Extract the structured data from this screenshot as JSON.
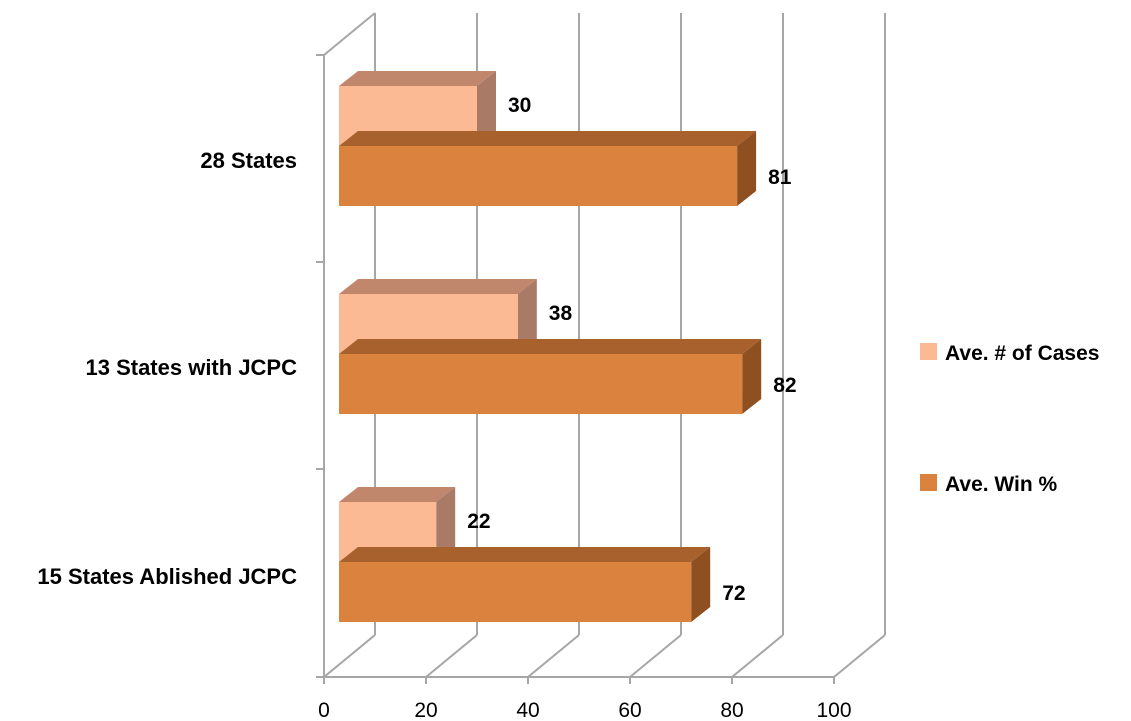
{
  "chart_data": {
    "type": "bar",
    "orientation": "horizontal",
    "style": "3d",
    "categories": [
      "28 States",
      "13 States with JCPC",
      "15 States Ablished JCPC"
    ],
    "series": [
      {
        "name": "Ave. # of Cases",
        "values": [
          30,
          38,
          22
        ],
        "color": "#FBB994",
        "top_color": "#C1876C",
        "side_color": "#A97A66"
      },
      {
        "name": "Ave. Win %",
        "values": [
          81,
          82,
          72
        ],
        "color": "#DB823F",
        "top_color": "#A8602C",
        "side_color": "#8E5020"
      }
    ],
    "xlim": [
      0,
      100
    ],
    "xticks": [
      "0",
      "20",
      "40",
      "60",
      "80",
      "100"
    ],
    "grid": true,
    "legend": "right",
    "data_labels": [
      "30",
      "81",
      "38",
      "82",
      "22",
      "72"
    ]
  }
}
